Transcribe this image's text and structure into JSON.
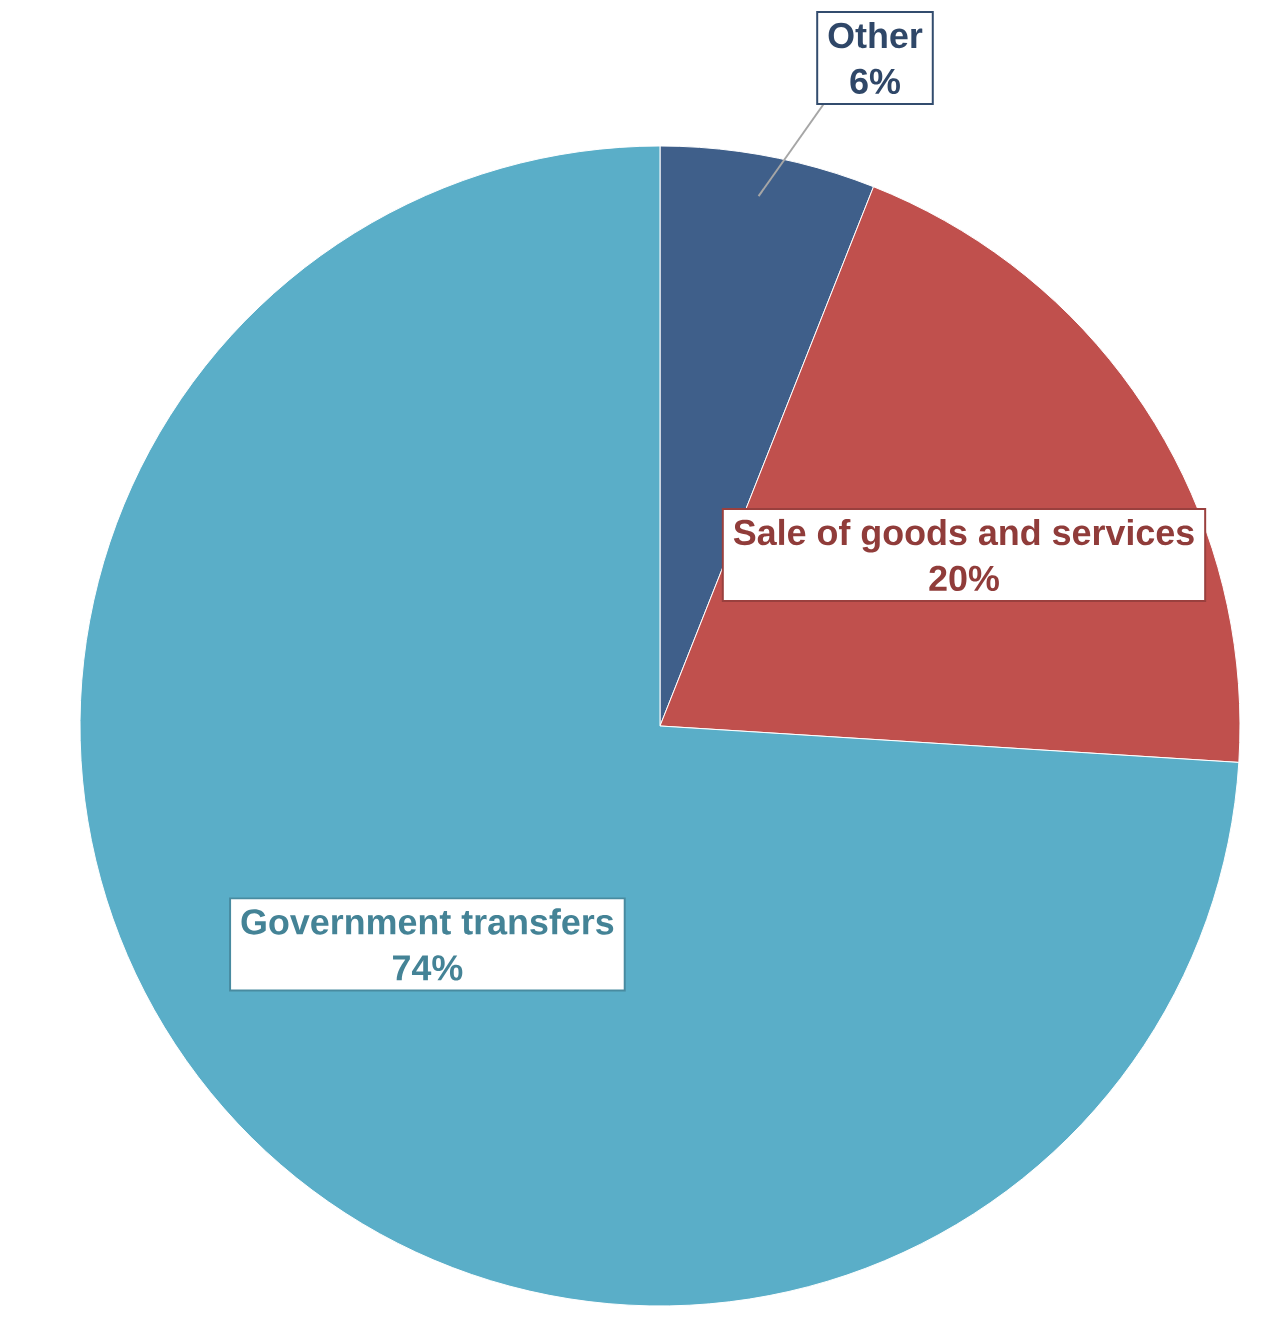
{
  "chart_data": {
    "type": "pie",
    "categories": [
      "Other",
      "Sale of goods and services",
      "Government transfers"
    ],
    "values": [
      6,
      20,
      74
    ],
    "value_labels": [
      "6%",
      "20%",
      "74%"
    ],
    "colors": [
      "#3f5f8a",
      "#c0504d",
      "#5aaec8"
    ]
  }
}
